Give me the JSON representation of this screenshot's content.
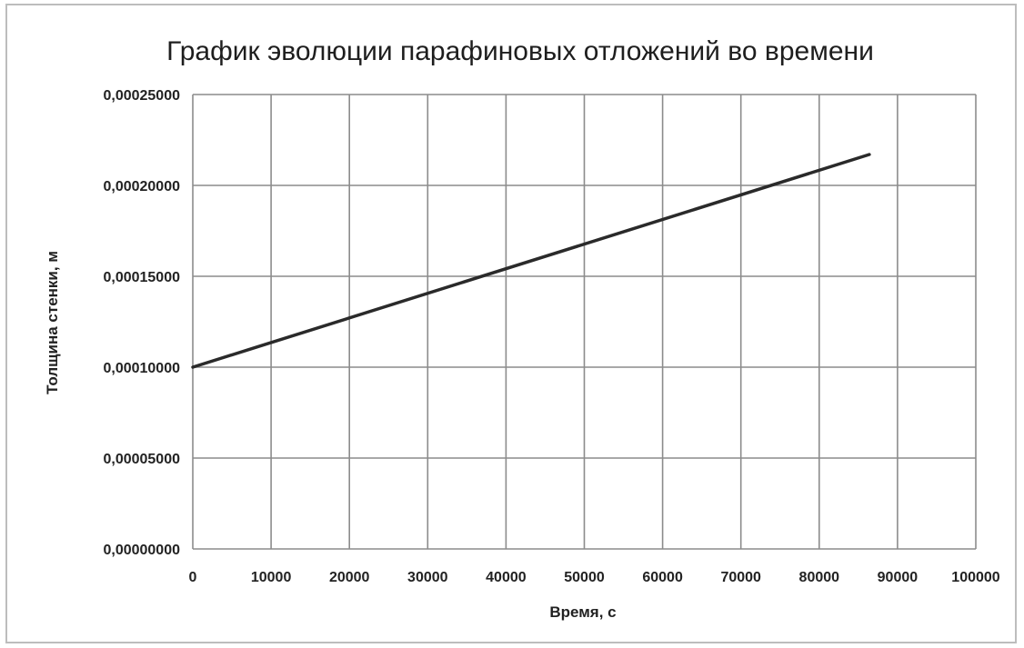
{
  "chart_data": {
    "type": "line",
    "title": "График эволюции парафиновых отложений во времени",
    "xlabel": "Время, с",
    "ylabel": "Толщина стенки, м",
    "xlim": [
      0,
      100000
    ],
    "ylim": [
      0,
      0.00025
    ],
    "x_ticks": [
      "0",
      "10000",
      "20000",
      "30000",
      "40000",
      "50000",
      "60000",
      "70000",
      "80000",
      "90000",
      "100000"
    ],
    "y_ticks": [
      "0,00000000",
      "0,00005000",
      "0,00010000",
      "0,00015000",
      "0,00020000",
      "0,00025000"
    ],
    "x_tick_values": [
      0,
      10000,
      20000,
      30000,
      40000,
      50000,
      60000,
      70000,
      80000,
      90000,
      100000
    ],
    "y_tick_values": [
      0,
      5e-05,
      0.0001,
      0.00015,
      0.0002,
      0.00025
    ],
    "grid": true,
    "legend": "none",
    "series": [
      {
        "x": [
          0,
          86400
        ],
        "y": [
          0.0001,
          0.000217
        ],
        "color": "#2a2a2a"
      }
    ]
  }
}
